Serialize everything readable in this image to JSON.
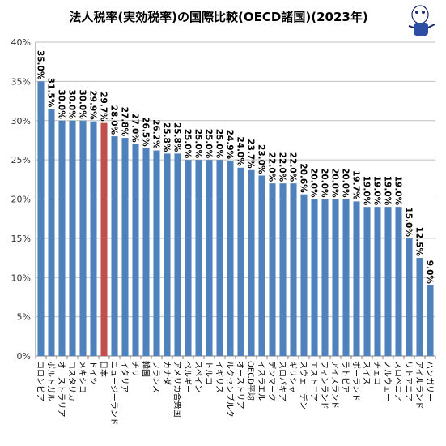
{
  "chart_data": {
    "type": "bar",
    "title": "法人税率(実効税率)の国際比較(OECD諸国)(2023年)",
    "xlabel": "",
    "ylabel": "",
    "ylim": [
      0,
      40
    ],
    "yticks": [
      "0%",
      "5%",
      "10%",
      "15%",
      "20%",
      "25%",
      "30%",
      "35%",
      "40%"
    ],
    "grid": true,
    "legend": "none",
    "colors": {
      "default": "#4f81bd",
      "highlight": "#c0504d"
    },
    "highlight_category": "日本",
    "categories": [
      "コロンビア",
      "ポルトガル",
      "オーストラリア",
      "コスタリカ",
      "メキシコ",
      "ドイツ",
      "日本",
      "ニュージーランド",
      "イタリア",
      "チリ",
      "韓国",
      "フランス",
      "カナダ",
      "アメリカ合衆国",
      "ベルギー",
      "スペイン",
      "トルコ",
      "イギリス",
      "ルクセンブルク",
      "オーストリア",
      "OECD平均",
      "イスラエル",
      "デンマーク",
      "スロバキア",
      "ギリシャ",
      "スウェーデン",
      "エストニア",
      "フィンランド",
      "アイスランド",
      "ラトビア",
      "ポーランド",
      "スイス",
      "チェコ",
      "ノルウェー",
      "スロベニア",
      "リトアニア",
      "アイルランド",
      "ハンガリー"
    ],
    "values": [
      35.0,
      31.5,
      30.0,
      30.0,
      30.0,
      29.9,
      29.7,
      28.0,
      27.8,
      27.0,
      26.5,
      26.2,
      25.8,
      25.8,
      25.0,
      25.0,
      25.0,
      25.0,
      24.9,
      24.0,
      23.7,
      23.0,
      22.0,
      22.0,
      22.0,
      20.6,
      20.0,
      20.0,
      20.0,
      20.0,
      19.7,
      19.0,
      19.0,
      19.0,
      19.0,
      15.0,
      12.5,
      9.0
    ],
    "value_labels": [
      "35.0%",
      "31.5%",
      "30.0%",
      "30.0%",
      "30.0%",
      "29.9%",
      "29.7%",
      "28.0%",
      "27.8%",
      "27.0%",
      "26.5%",
      "26.2%",
      "25.8%",
      "25.8%",
      "25.0%",
      "25.0%",
      "25.0%",
      "25.0%",
      "24.9%",
      "24.0%",
      "23.7%",
      "23.0%",
      "22.0%",
      "22.0%",
      "22.0%",
      "20.6%",
      "20.0%",
      "20.0%",
      "20.0%",
      "20.0%",
      "19.7%",
      "19.0%",
      "19.0%",
      "19.0%",
      "19.0%",
      "15.0%",
      "12.5%",
      "9.0%"
    ]
  }
}
